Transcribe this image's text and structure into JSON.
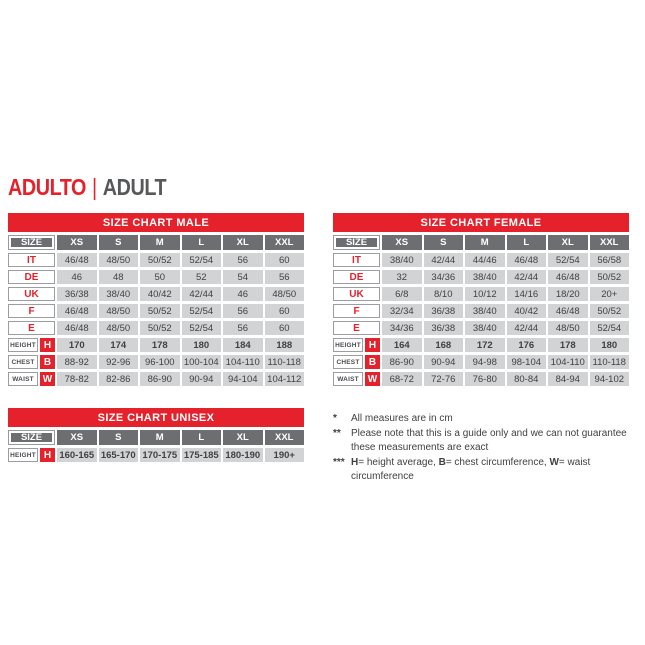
{
  "heading": {
    "primary": "ADULTO",
    "separator": "|",
    "secondary": "ADULT"
  },
  "colors": {
    "red": "#e5212b",
    "header_gray": "#6d6e71",
    "cell_gray": "#d2d3d5",
    "text_dark": "#414042",
    "heading_gray": "#57585a"
  },
  "tables": {
    "male": {
      "title": "SIZE CHART MALE",
      "size_label": "SIZE",
      "columns": [
        "XS",
        "S",
        "M",
        "L",
        "XL",
        "XXL"
      ],
      "size_rows": [
        {
          "label": "IT",
          "values": [
            "46/48",
            "48/50",
            "50/52",
            "52/54",
            "56",
            "60"
          ]
        },
        {
          "label": "DE",
          "values": [
            "46",
            "48",
            "50",
            "52",
            "54",
            "56"
          ]
        },
        {
          "label": "UK",
          "values": [
            "36/38",
            "38/40",
            "40/42",
            "42/44",
            "46",
            "48/50"
          ]
        },
        {
          "label": "F",
          "values": [
            "46/48",
            "48/50",
            "50/52",
            "52/54",
            "56",
            "60"
          ]
        },
        {
          "label": "E",
          "values": [
            "46/48",
            "48/50",
            "50/52",
            "52/54",
            "56",
            "60"
          ]
        }
      ],
      "measure_rows": [
        {
          "label": "HEIGHT",
          "letter": "H",
          "bold": true,
          "values": [
            "170",
            "174",
            "178",
            "180",
            "184",
            "188"
          ]
        },
        {
          "label": "CHEST",
          "letter": "B",
          "bold": false,
          "values": [
            "88-92",
            "92-96",
            "96-100",
            "100-104",
            "104-110",
            "110-118"
          ]
        },
        {
          "label": "WAIST",
          "letter": "W",
          "bold": false,
          "values": [
            "78-82",
            "82-86",
            "86-90",
            "90-94",
            "94-104",
            "104-112"
          ]
        }
      ]
    },
    "female": {
      "title": "SIZE CHART FEMALE",
      "size_label": "SIZE",
      "columns": [
        "XS",
        "S",
        "M",
        "L",
        "XL",
        "XXL"
      ],
      "size_rows": [
        {
          "label": "IT",
          "values": [
            "38/40",
            "42/44",
            "44/46",
            "46/48",
            "52/54",
            "56/58"
          ]
        },
        {
          "label": "DE",
          "values": [
            "32",
            "34/36",
            "38/40",
            "42/44",
            "46/48",
            "50/52"
          ]
        },
        {
          "label": "UK",
          "values": [
            "6/8",
            "8/10",
            "10/12",
            "14/16",
            "18/20",
            "20+"
          ]
        },
        {
          "label": "F",
          "values": [
            "32/34",
            "36/38",
            "38/40",
            "40/42",
            "46/48",
            "50/52"
          ]
        },
        {
          "label": "E",
          "values": [
            "34/36",
            "36/38",
            "38/40",
            "42/44",
            "48/50",
            "52/54"
          ]
        }
      ],
      "measure_rows": [
        {
          "label": "HEIGHT",
          "letter": "H",
          "bold": true,
          "values": [
            "164",
            "168",
            "172",
            "176",
            "178",
            "180"
          ]
        },
        {
          "label": "CHEST",
          "letter": "B",
          "bold": false,
          "values": [
            "86-90",
            "90-94",
            "94-98",
            "98-104",
            "104-110",
            "110-118"
          ]
        },
        {
          "label": "WAIST",
          "letter": "W",
          "bold": false,
          "values": [
            "68-72",
            "72-76",
            "76-80",
            "80-84",
            "84-94",
            "94-102"
          ]
        }
      ]
    },
    "unisex": {
      "title": "SIZE CHART UNISEX",
      "size_label": "SIZE",
      "columns": [
        "XS",
        "S",
        "M",
        "L",
        "XL",
        "XXL"
      ],
      "size_rows": [],
      "measure_rows": [
        {
          "label": "HEIGHT",
          "letter": "H",
          "bold": true,
          "values": [
            "160-165",
            "165-170",
            "170-175",
            "175-185",
            "180-190",
            "190+"
          ]
        }
      ]
    }
  },
  "footnotes": [
    {
      "marker": "*",
      "segments": [
        {
          "text": "All measures are in cm",
          "bold": false
        }
      ]
    },
    {
      "marker": "**",
      "segments": [
        {
          "text": "Please note that this is a guide only and we can not guarantee these measurements are exact",
          "bold": false
        }
      ]
    },
    {
      "marker": "***",
      "segments": [
        {
          "text": "H",
          "bold": true
        },
        {
          "text": "= height average, ",
          "bold": false
        },
        {
          "text": "B",
          "bold": true
        },
        {
          "text": "= chest circumference, ",
          "bold": false
        },
        {
          "text": "W",
          "bold": true
        },
        {
          "text": "= waist circumference",
          "bold": false
        }
      ]
    }
  ]
}
